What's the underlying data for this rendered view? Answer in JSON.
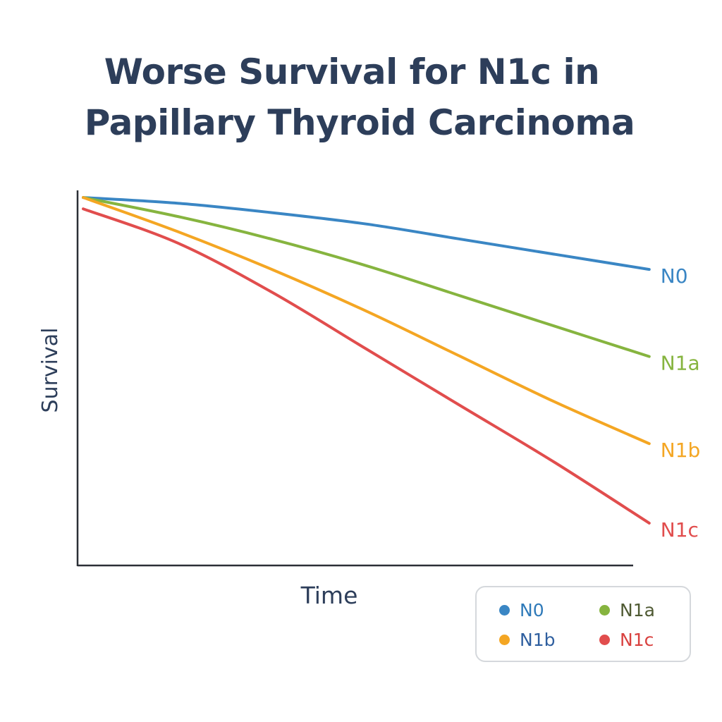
{
  "title": {
    "line1": "Worse Survival for N1c in",
    "line2": "Papillary Thyroid Carcinoma"
  },
  "chart_data": {
    "type": "line",
    "title": "Worse Survival for N1c in Papillary Thyroid Carcinoma",
    "xlabel": "Time",
    "ylabel": "Survival",
    "xlim": [
      0,
      1
    ],
    "ylim": [
      0,
      1
    ],
    "grid": false,
    "ticks_shown": false,
    "legend_position": "bottom-right",
    "series": [
      {
        "name": "N0",
        "color": "#3a86c4",
        "x": [
          0.0,
          0.15,
          0.3,
          0.45,
          0.6,
          0.75,
          0.9
        ],
        "y": [
          0.97,
          0.955,
          0.93,
          0.9,
          0.86,
          0.82,
          0.78
        ]
      },
      {
        "name": "N1a",
        "color": "#86b43f",
        "x": [
          0.0,
          0.15,
          0.3,
          0.45,
          0.6,
          0.75,
          0.9
        ],
        "y": [
          0.97,
          0.92,
          0.86,
          0.79,
          0.71,
          0.63,
          0.55
        ]
      },
      {
        "name": "N1b",
        "color": "#f4a623",
        "x": [
          0.0,
          0.15,
          0.3,
          0.45,
          0.6,
          0.75,
          0.9
        ],
        "y": [
          0.97,
          0.88,
          0.78,
          0.67,
          0.55,
          0.43,
          0.32
        ]
      },
      {
        "name": "N1c",
        "color": "#e14d4d",
        "x": [
          0.0,
          0.15,
          0.3,
          0.45,
          0.6,
          0.75,
          0.9
        ],
        "y": [
          0.94,
          0.85,
          0.72,
          0.57,
          0.42,
          0.27,
          0.11
        ]
      }
    ],
    "legend": [
      {
        "label": "N0",
        "color": "#3a86c4",
        "text_color": "#2f7ab9"
      },
      {
        "label": "N1a",
        "color": "#86b43f",
        "text_color": "#4f5a33"
      },
      {
        "label": "N1b",
        "color": "#f4a623",
        "text_color": "#2f5f9f"
      },
      {
        "label": "N1c",
        "color": "#e14d4d",
        "text_color": "#d9413f"
      }
    ]
  }
}
